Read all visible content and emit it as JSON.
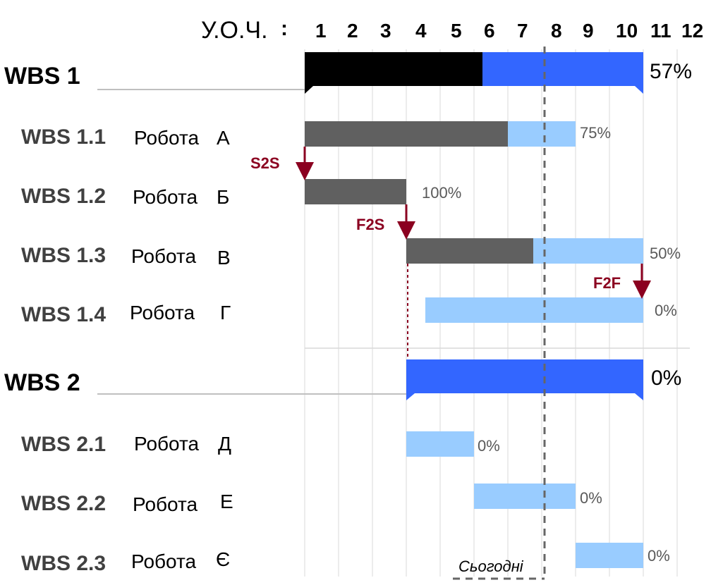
{
  "header": {
    "units_label": "У.О.Ч.",
    "colon": ":",
    "periods": [
      "1",
      "2",
      "3",
      "4",
      "5",
      "6",
      "7",
      "8",
      "9",
      "10",
      "11",
      "12"
    ]
  },
  "rows": [
    {
      "kind": "phase",
      "code": "WBS 1",
      "task": "",
      "progress": "57%"
    },
    {
      "kind": "task",
      "code": "WBS 1.1",
      "task_word": "Робота",
      "task_letter": "А",
      "progress": "75%"
    },
    {
      "kind": "task",
      "code": "WBS 1.2",
      "task_word": "Робота",
      "task_letter": "Б",
      "progress": "100%"
    },
    {
      "kind": "task",
      "code": "WBS 1.3",
      "task_word": "Робота",
      "task_letter": "В",
      "progress": "50%"
    },
    {
      "kind": "task",
      "code": "WBS 1.4",
      "task_word": "Робота",
      "task_letter": "Г",
      "progress": "0%"
    },
    {
      "kind": "phase",
      "code": "WBS 2",
      "task": "",
      "progress": "0%"
    },
    {
      "kind": "task",
      "code": "WBS 2.1",
      "task_word": "Робота",
      "task_letter": "Д",
      "progress": "0%"
    },
    {
      "kind": "task",
      "code": "WBS 2.2",
      "task_word": "Робота",
      "task_letter": "Е",
      "progress": "0%"
    },
    {
      "kind": "task",
      "code": "WBS 2.3",
      "task_word": "Робота",
      "task_letter": "Є",
      "progress": "0%"
    }
  ],
  "dependencies": [
    {
      "type": "S2S",
      "from": "WBS 1.1",
      "to": "WBS 1.2"
    },
    {
      "type": "F2S",
      "from": "WBS 1.2",
      "to": "WBS 1.3"
    },
    {
      "type": "F2F",
      "from": "WBS 1.3",
      "to": "WBS 1.4"
    }
  ],
  "today_label": "Сьогодні",
  "colors": {
    "phase_done": "#000000",
    "phase_remaining": "#3366ff",
    "task_done": "#606060",
    "task_remaining": "#99ccff",
    "dependency": "#8b0020",
    "today_line": "#666666",
    "grid": "#e6e6e6"
  }
}
